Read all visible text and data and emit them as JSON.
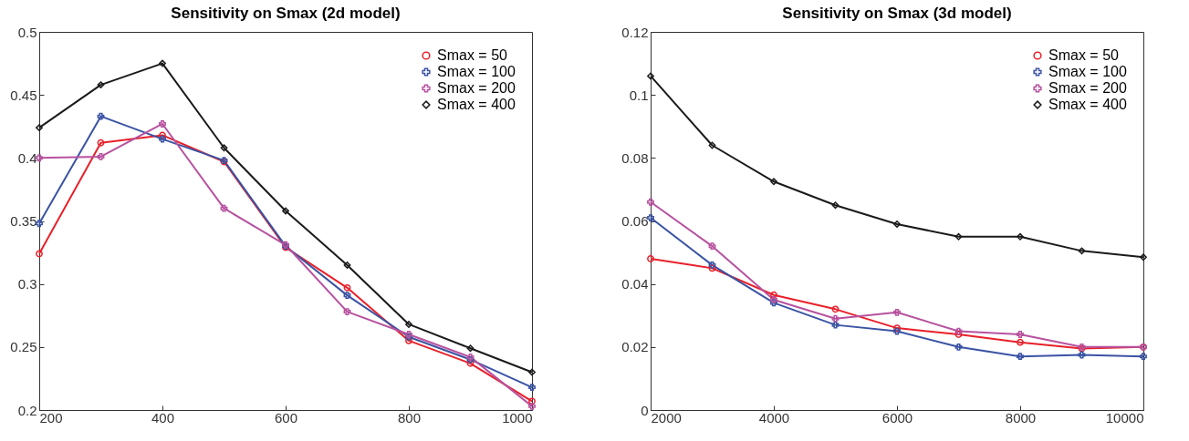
{
  "chart_data": [
    {
      "type": "line",
      "title": "Sensitivity on Smax (2d model)",
      "x": [
        200,
        300,
        400,
        500,
        600,
        700,
        800,
        900,
        1000
      ],
      "xlim": [
        200,
        1000
      ],
      "xticks": [
        200,
        400,
        600,
        800,
        1000
      ],
      "ylim": [
        0.2,
        0.5
      ],
      "yticks": [
        0.2,
        0.25,
        0.3,
        0.35,
        0.4,
        0.45,
        0.5
      ],
      "grid": false,
      "legend": "top right",
      "series": [
        {
          "name": "Smax = 50",
          "color": "#e8202a",
          "marker": "circle",
          "values": [
            0.324,
            0.412,
            0.418,
            0.397,
            0.329,
            0.297,
            0.255,
            0.237,
            0.207
          ]
        },
        {
          "name": "Smax = 100",
          "color": "#3a53a4",
          "marker": "cross",
          "values": [
            0.348,
            0.433,
            0.415,
            0.398,
            0.33,
            0.291,
            0.258,
            0.24,
            0.218
          ]
        },
        {
          "name": "Smax = 200",
          "color": "#b7529f",
          "marker": "cross",
          "values": [
            0.4,
            0.401,
            0.427,
            0.36,
            0.331,
            0.278,
            0.26,
            0.242,
            0.203
          ]
        },
        {
          "name": "Smax = 400",
          "color": "#1a1a1a",
          "marker": "diamond",
          "values": [
            0.424,
            0.458,
            0.475,
            0.408,
            0.358,
            0.315,
            0.268,
            0.249,
            0.23
          ]
        }
      ]
    },
    {
      "type": "line",
      "title": "Sensitivity on Smax (3d model)",
      "x": [
        2000,
        3000,
        4000,
        5000,
        6000,
        7000,
        8000,
        9000,
        10000
      ],
      "xlim": [
        2000,
        10000
      ],
      "xticks": [
        2000,
        4000,
        6000,
        8000,
        10000
      ],
      "ylim": [
        0,
        0.12
      ],
      "yticks": [
        0,
        0.02,
        0.04,
        0.06,
        0.08,
        0.1,
        0.12
      ],
      "grid": false,
      "legend": "top right",
      "series": [
        {
          "name": "Smax = 50",
          "color": "#e8202a",
          "marker": "circle",
          "values": [
            0.048,
            0.045,
            0.0365,
            0.032,
            0.026,
            0.024,
            0.0215,
            0.0195,
            0.02
          ]
        },
        {
          "name": "Smax = 100",
          "color": "#3a53a4",
          "marker": "cross",
          "values": [
            0.061,
            0.046,
            0.034,
            0.027,
            0.025,
            0.02,
            0.017,
            0.0175,
            0.017
          ]
        },
        {
          "name": "Smax = 200",
          "color": "#b7529f",
          "marker": "cross",
          "values": [
            0.066,
            0.052,
            0.035,
            0.029,
            0.031,
            0.025,
            0.024,
            0.02,
            0.02
          ]
        },
        {
          "name": "Smax = 400",
          "color": "#1a1a1a",
          "marker": "diamond",
          "values": [
            0.106,
            0.084,
            0.0725,
            0.065,
            0.059,
            0.055,
            0.055,
            0.0505,
            0.0485
          ]
        }
      ]
    }
  ]
}
